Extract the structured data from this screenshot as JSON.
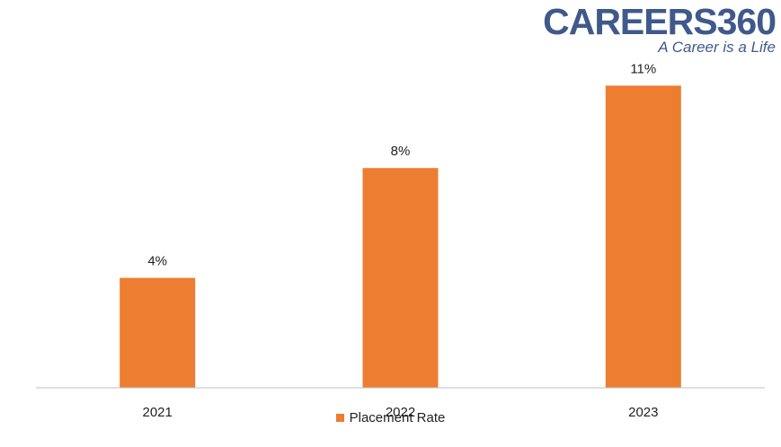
{
  "logo": {
    "wordmark": "CAREERS360",
    "tagline": "A Career is a Life"
  },
  "colors": {
    "bar": "#ed7d31",
    "axis": "#bfbfbf",
    "brand": "#3f5a8a"
  },
  "chart_data": {
    "type": "bar",
    "categories": [
      "2021",
      "2022",
      "2023"
    ],
    "series": [
      {
        "name": "Placement Rate",
        "values": [
          4,
          8,
          11
        ],
        "data_labels": [
          "4%",
          "8%",
          "11%"
        ]
      }
    ],
    "title": "",
    "xlabel": "",
    "ylabel": "",
    "unit": "%",
    "ylim": [
      0,
      12
    ],
    "grid": false,
    "legend": "bottom"
  }
}
